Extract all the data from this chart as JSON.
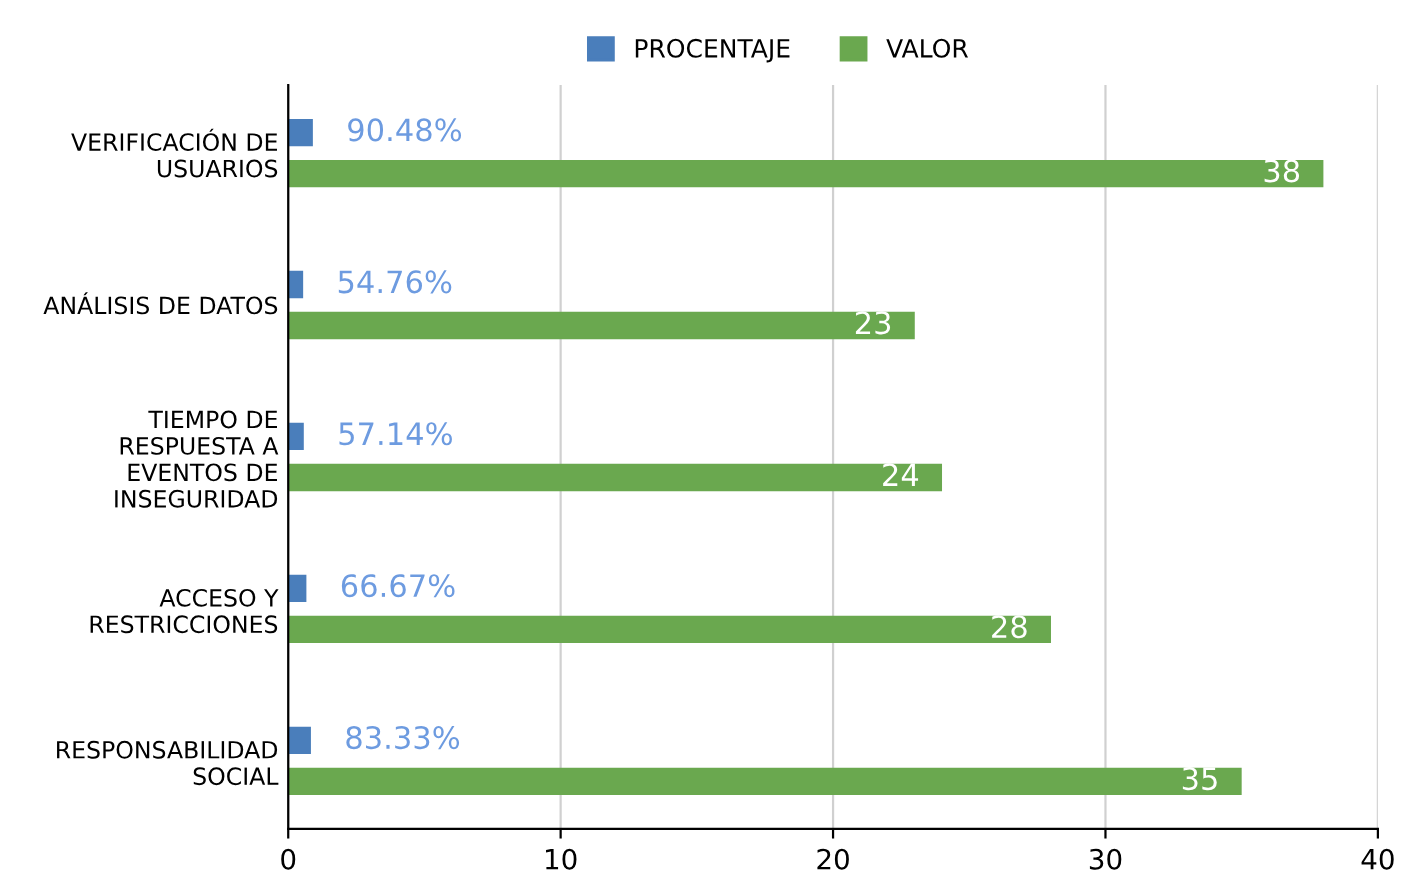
{
  "chart_data": {
    "type": "bar",
    "orientation": "horizontal",
    "categories": [
      "VERIFICACIÓN DE\nUSUARIOS",
      "ANÁLISIS DE DATOS",
      "TIEMPO DE\nRESPUESTA A\nEVENTOS DE\nINSEGURIDAD",
      "ACCESO Y\nRESTRICCIONES",
      "RESPONSABILIDAD\nSOCIAL"
    ],
    "series": [
      {
        "name": "PROCENTAJE",
        "color": "#4a7ebb",
        "values": [
          0.9048,
          0.5476,
          0.5714,
          0.6667,
          0.8333
        ],
        "value_labels": [
          "90.48%",
          "54.76%",
          "57.14%",
          "66.67%",
          "83.33%"
        ]
      },
      {
        "name": "VALOR",
        "color": "#6aa84f",
        "values": [
          38,
          23,
          24,
          28,
          35
        ],
        "value_labels": [
          "38",
          "23",
          "24",
          "28",
          "35"
        ]
      }
    ],
    "xlim": [
      0,
      40
    ],
    "xticks": [
      0,
      10,
      20,
      30,
      40
    ],
    "grid": "x",
    "legend": "top"
  }
}
